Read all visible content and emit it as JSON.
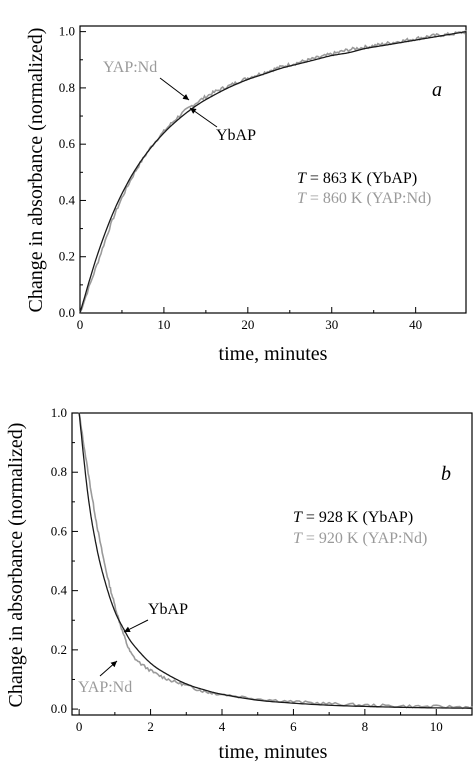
{
  "colors": {
    "ybap": "#1a1a1a",
    "yapnd": "#9a9a9a",
    "axis": "#000000"
  },
  "chart_data": [
    {
      "type": "line",
      "panel_label": "a",
      "xlabel": "time, minutes",
      "ylabel": "Change in absorbance (normalized)",
      "xlim": [
        0,
        46
      ],
      "ylim": [
        0,
        1.02
      ],
      "xticks": [
        0,
        10,
        20,
        30,
        40
      ],
      "yticks": [
        0.0,
        0.2,
        0.4,
        0.6,
        0.8,
        1.0
      ],
      "x_tick_labels": [
        "0",
        "10",
        "20",
        "30",
        "40"
      ],
      "y_tick_labels": [
        "0.0",
        "0.2",
        "0.4",
        "0.6",
        "0.8",
        "1.0"
      ],
      "grid": false,
      "series": [
        {
          "name": "YbAP",
          "color": "#1a1a1a",
          "x": [
            0,
            2,
            4,
            6,
            8,
            10,
            12,
            14,
            16,
            18,
            20,
            22,
            24,
            26,
            28,
            30,
            32,
            34,
            36,
            38,
            40,
            42,
            44,
            46
          ],
          "y": [
            0.0,
            0.2,
            0.36,
            0.48,
            0.57,
            0.64,
            0.695,
            0.74,
            0.775,
            0.805,
            0.83,
            0.85,
            0.87,
            0.885,
            0.9,
            0.915,
            0.925,
            0.94,
            0.95,
            0.96,
            0.97,
            0.98,
            0.99,
            1.0
          ]
        },
        {
          "name": "YAP:Nd",
          "color": "#9a9a9a",
          "x": [
            0,
            2,
            4,
            6,
            8,
            10,
            12,
            14,
            16,
            18,
            20,
            22,
            24,
            26,
            28,
            30,
            32,
            34,
            36,
            38,
            40,
            42,
            44,
            46
          ],
          "y": [
            0.0,
            0.17,
            0.34,
            0.47,
            0.57,
            0.645,
            0.705,
            0.75,
            0.785,
            0.81,
            0.835,
            0.855,
            0.875,
            0.89,
            0.905,
            0.92,
            0.935,
            0.945,
            0.955,
            0.965,
            0.975,
            0.985,
            0.99,
            1.0
          ]
        }
      ],
      "annotations": {
        "yapnd_label": "YAP:Nd",
        "ybap_label": "YbAP",
        "temp_ybap": {
          "var": "T",
          "text": " = 863 K (YbAP)"
        },
        "temp_yapnd": {
          "var": "T",
          "text": " = 860 K (YAP:Nd)"
        }
      }
    },
    {
      "type": "line",
      "panel_label": "b",
      "xlabel": "time, minutes",
      "ylabel": "Change in absorbance (normalized)",
      "xlim": [
        -0.2,
        11
      ],
      "ylim": [
        -0.02,
        1.0
      ],
      "xticks": [
        0,
        2,
        4,
        6,
        8,
        10
      ],
      "yticks": [
        0.0,
        0.2,
        0.4,
        0.6,
        0.8,
        1.0
      ],
      "x_tick_labels": [
        "0",
        "2",
        "4",
        "6",
        "8",
        "10"
      ],
      "y_tick_labels": [
        "0.0",
        "0.2",
        "0.4",
        "0.6",
        "0.8",
        "1.0"
      ],
      "grid": false,
      "series": [
        {
          "name": "YbAP",
          "color": "#1a1a1a",
          "x": [
            0,
            0.25,
            0.5,
            0.75,
            1.0,
            1.25,
            1.5,
            2.0,
            2.5,
            3.0,
            3.5,
            4.0,
            5.0,
            6.0,
            7.0,
            8.0,
            9.0,
            10.0,
            11.0
          ],
          "y": [
            1.0,
            0.72,
            0.54,
            0.42,
            0.33,
            0.27,
            0.22,
            0.155,
            0.115,
            0.085,
            0.065,
            0.05,
            0.03,
            0.02,
            0.013,
            0.009,
            0.006,
            0.004,
            0.003
          ]
        },
        {
          "name": "YAP:Nd",
          "color": "#9a9a9a",
          "x": [
            0,
            0.25,
            0.5,
            0.75,
            1.0,
            1.25,
            1.5,
            2.0,
            2.5,
            3.0,
            3.5,
            4.0,
            5.0,
            6.0,
            7.0,
            8.0,
            9.0,
            10.0,
            11.0
          ],
          "y": [
            1.0,
            0.8,
            0.62,
            0.47,
            0.35,
            0.25,
            0.18,
            0.13,
            0.1,
            0.08,
            0.06,
            0.05,
            0.035,
            0.025,
            0.018,
            0.013,
            0.01,
            0.008,
            0.007
          ]
        }
      ],
      "annotations": {
        "yapnd_label": "YAP:Nd",
        "ybap_label": "YbAP",
        "temp_ybap": {
          "var": "T",
          "text": " = 928 K (YbAP)"
        },
        "temp_yapnd": {
          "var": "T",
          "text": " = 920 K (YAP:Nd)"
        }
      }
    }
  ]
}
